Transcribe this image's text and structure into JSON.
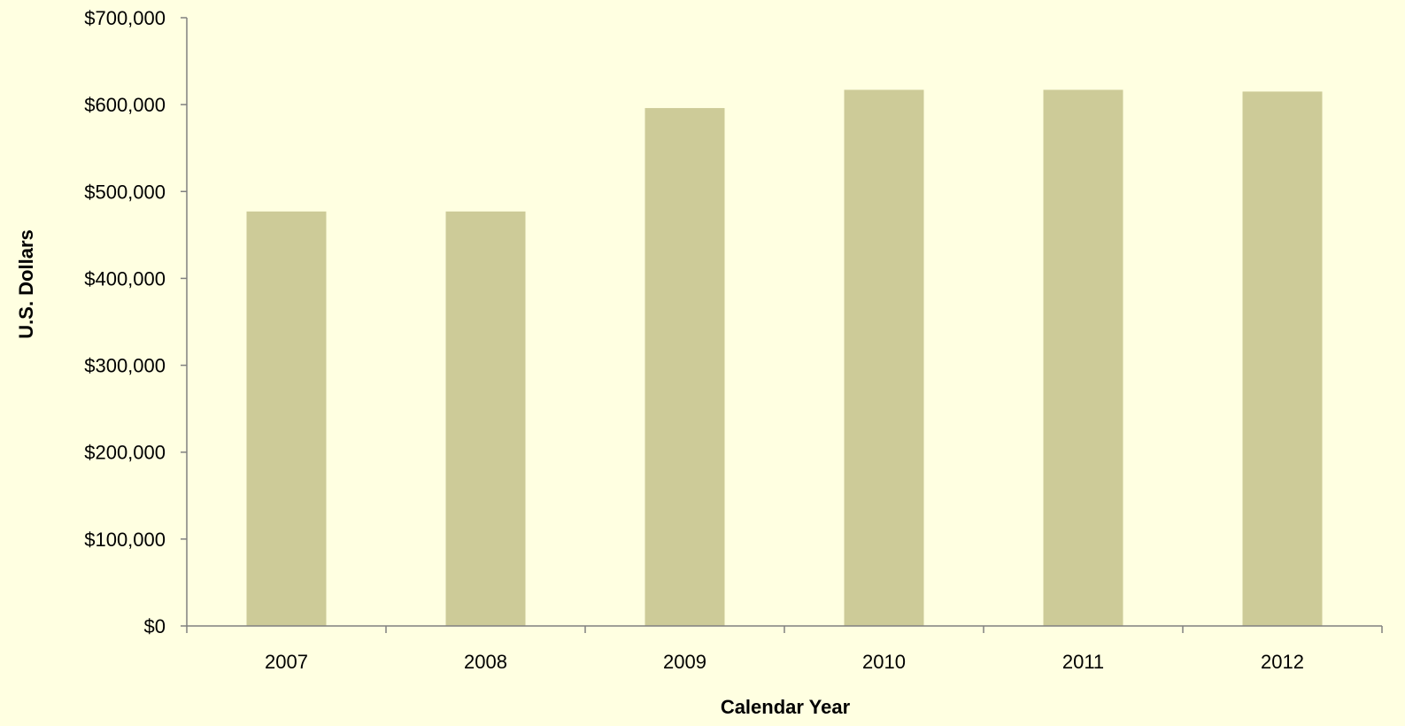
{
  "colors": {
    "background": "#FFFFE1",
    "bar": "#CDCB98",
    "axis": "#808080"
  },
  "chart_data": {
    "type": "bar",
    "title": "",
    "xlabel": "Calendar Year",
    "ylabel": "U.S. Dollars",
    "categories": [
      "2007",
      "2008",
      "2009",
      "2010",
      "2011",
      "2012"
    ],
    "values": [
      477000,
      477000,
      596000,
      617000,
      617000,
      615000
    ],
    "ylim": [
      0,
      700000
    ],
    "yticks": [
      0,
      100000,
      200000,
      300000,
      400000,
      500000,
      600000,
      700000
    ],
    "ytick_labels": [
      "$0",
      "$100,000",
      "$200,000",
      "$300,000",
      "$400,000",
      "$500,000",
      "$600,000",
      "$700,000"
    ],
    "grid": false,
    "legend": "none"
  }
}
